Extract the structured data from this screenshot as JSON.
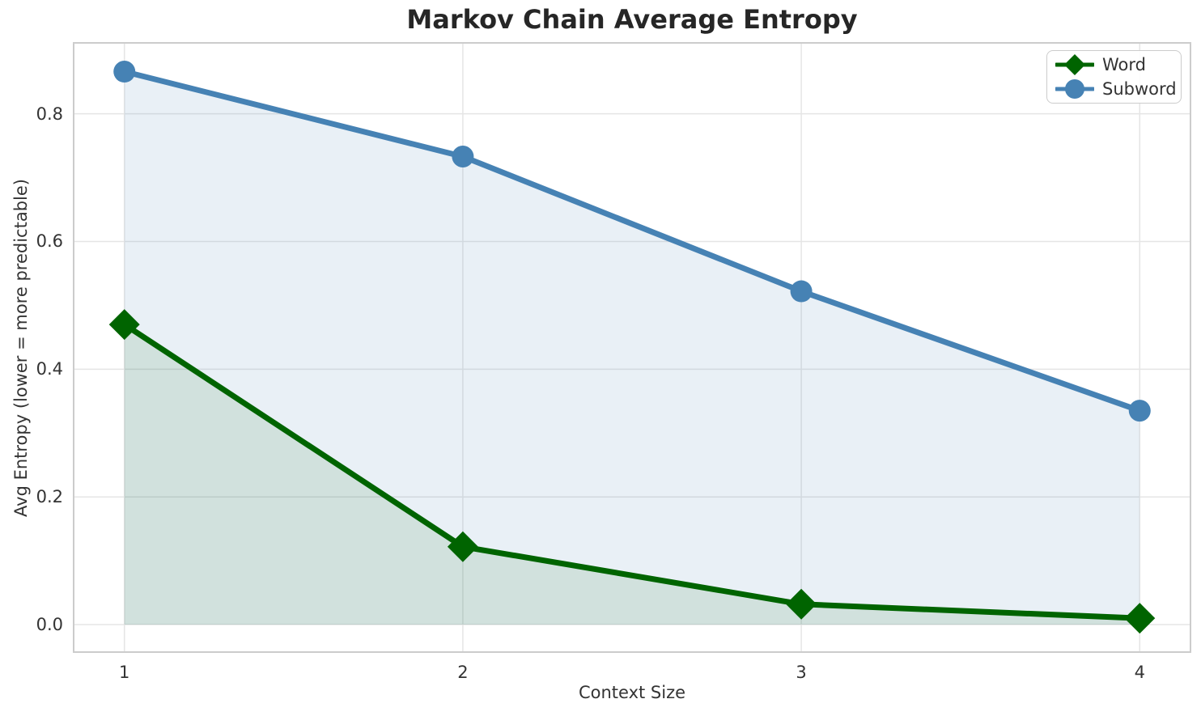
{
  "chart_data": {
    "type": "line",
    "title": "Markov Chain Average Entropy",
    "xlabel": "Context Size",
    "ylabel": "Avg Entropy (lower = more predictable)",
    "x": [
      1,
      2,
      3,
      4
    ],
    "xtick_labels": [
      "1",
      "2",
      "3",
      "4"
    ],
    "ytick_values": [
      0.0,
      0.2,
      0.4,
      0.6,
      0.8
    ],
    "ytick_labels": [
      "0.0",
      "0.2",
      "0.4",
      "0.6",
      "0.8"
    ],
    "xlim": [
      0.85,
      4.15
    ],
    "ylim": [
      -0.043,
      0.911
    ],
    "grid": true,
    "legend_position": "upper-right",
    "series": [
      {
        "name": "Word",
        "values": [
          0.47,
          0.122,
          0.032,
          0.01
        ],
        "color": "#006400",
        "fill_color": "rgba(0,100,0,0.10)",
        "marker": "diamond",
        "fill_to_zero": true
      },
      {
        "name": "Subword",
        "values": [
          0.866,
          0.733,
          0.522,
          0.335
        ],
        "color": "#4682B4",
        "fill_color": "rgba(70,130,180,0.12)",
        "marker": "circle",
        "fill_to_zero": true
      }
    ],
    "colors": {
      "grid": "#e5e5e5",
      "spine": "#cccccc",
      "text": "#333333",
      "title": "#262626",
      "background": "#ffffff"
    }
  }
}
